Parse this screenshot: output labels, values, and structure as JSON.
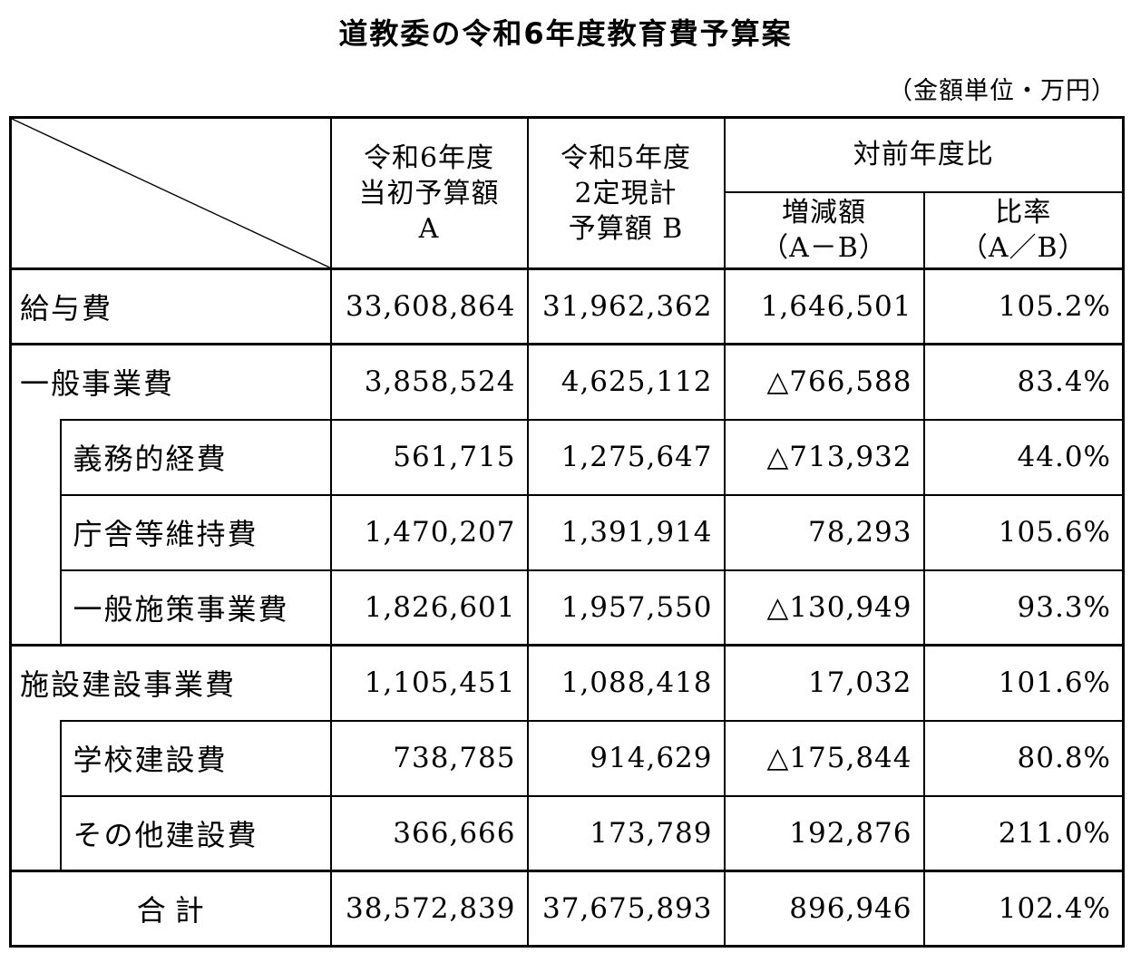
{
  "title": "道教委の令和6年度教育費予算案",
  "unit_note": "（金額単位・万円）",
  "table": {
    "header": {
      "col_a": "令和6年度\n当初予算額\nA",
      "col_b": "令和5年度\n2定現計\n予算額 B",
      "yoy_group": "対前年度比",
      "diff": "増減額\n（A－B）",
      "ratio": "比率\n（A／B）"
    },
    "rows": [
      {
        "label": "給与費",
        "indent": false,
        "has_children": false,
        "total": false,
        "group_start": true,
        "a": "33,608,864",
        "b": "31,962,362",
        "diff": "1,646,501",
        "ratio": "105.2%"
      },
      {
        "label": "一般事業費",
        "indent": false,
        "has_children": true,
        "total": false,
        "group_start": true,
        "a": "3,858,524",
        "b": "4,625,112",
        "diff": "△766,588",
        "ratio": "83.4%"
      },
      {
        "label": "義務的経費",
        "indent": true,
        "has_children": false,
        "total": false,
        "group_start": false,
        "a": "561,715",
        "b": "1,275,647",
        "diff": "△713,932",
        "ratio": "44.0%"
      },
      {
        "label": "庁舎等維持費",
        "indent": true,
        "has_children": false,
        "total": false,
        "group_start": false,
        "a": "1,470,207",
        "b": "1,391,914",
        "diff": "78,293",
        "ratio": "105.6%"
      },
      {
        "label": "一般施策事業費",
        "indent": true,
        "has_children": false,
        "total": false,
        "group_start": false,
        "a": "1,826,601",
        "b": "1,957,550",
        "diff": "△130,949",
        "ratio": "93.3%"
      },
      {
        "label": "施設建設事業費",
        "indent": false,
        "has_children": true,
        "total": false,
        "group_start": true,
        "a": "1,105,451",
        "b": "1,088,418",
        "diff": "17,032",
        "ratio": "101.6%"
      },
      {
        "label": "学校建設費",
        "indent": true,
        "has_children": false,
        "total": false,
        "group_start": false,
        "a": "738,785",
        "b": "914,629",
        "diff": "△175,844",
        "ratio": "80.8%"
      },
      {
        "label": "その他建設費",
        "indent": true,
        "has_children": false,
        "total": false,
        "group_start": false,
        "a": "366,666",
        "b": "173,789",
        "diff": "192,876",
        "ratio": "211.0%"
      },
      {
        "label": "合計",
        "indent": false,
        "has_children": false,
        "total": true,
        "group_start": true,
        "a": "38,572,839",
        "b": "37,675,893",
        "diff": "896,946",
        "ratio": "102.4%"
      }
    ]
  }
}
